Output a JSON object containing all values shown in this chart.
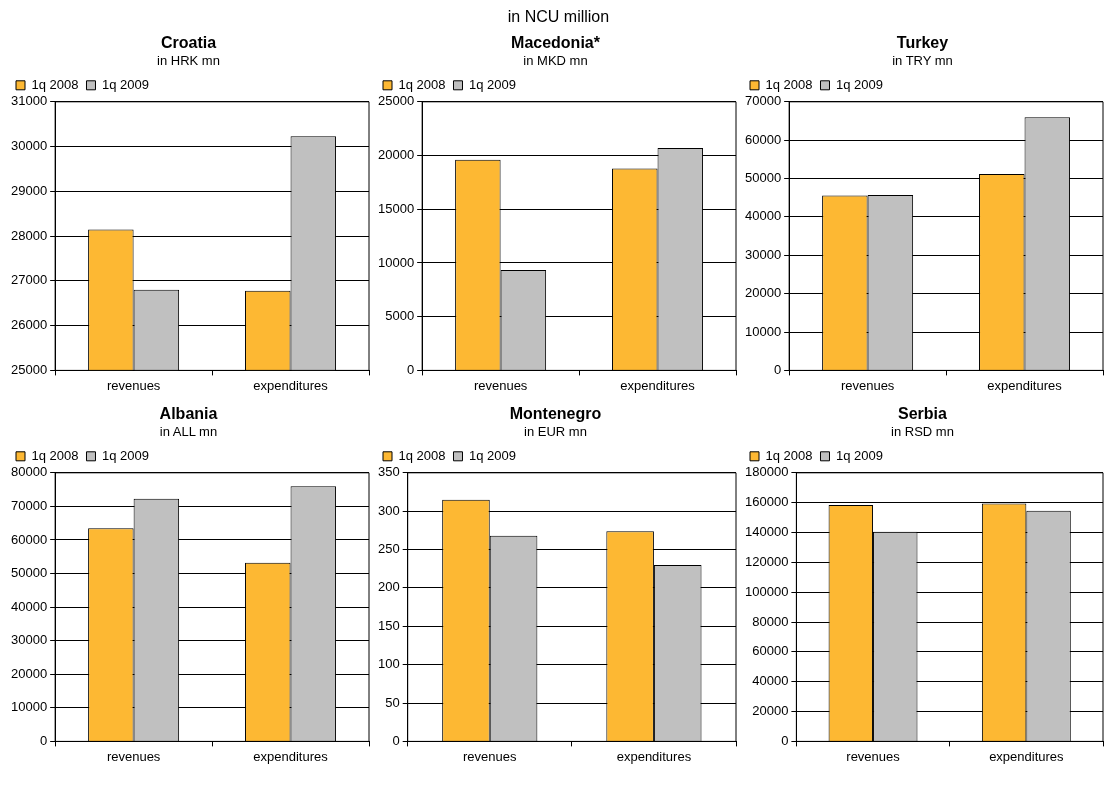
{
  "chart_data": [
    {
      "type": "other",
      "subtitle": "in NCU million"
    },
    {
      "type": "bar",
      "title": "Croatia",
      "subtitle": "in HRK mn",
      "categories": [
        "revenues",
        "expenditures"
      ],
      "series": [
        {
          "name": "1q 2008",
          "color": "#fdb833",
          "values": [
            28150,
            26780
          ]
        },
        {
          "name": "1q 2009",
          "color": "#c0c0c0",
          "values": [
            26800,
            30230
          ]
        }
      ],
      "ylim": [
        25000,
        31000
      ],
      "yticks": [
        25000,
        26000,
        27000,
        28000,
        29000,
        30000,
        31000
      ],
      "grid": "y",
      "legend": "top"
    },
    {
      "type": "bar",
      "title": "Macedonia*",
      "subtitle": "in MKD mn",
      "categories": [
        "revenues",
        "expenditures"
      ],
      "series": [
        {
          "name": "1q 2008",
          "color": "#fdb833",
          "values": [
            19600,
            18800
          ]
        },
        {
          "name": "1q 2009",
          "color": "#c0c0c0",
          "values": [
            9350,
            20700
          ]
        }
      ],
      "ylim": [
        0,
        25000
      ],
      "yticks": [
        0,
        5000,
        10000,
        15000,
        20000,
        25000
      ],
      "grid": "y",
      "legend": "top"
    },
    {
      "type": "bar",
      "title": "Turkey",
      "subtitle": "in TRY mn",
      "categories": [
        "revenues",
        "expenditures"
      ],
      "series": [
        {
          "name": "1q 2008",
          "color": "#fdb833",
          "values": [
            45600,
            51200
          ]
        },
        {
          "name": "1q 2009",
          "color": "#c0c0c0",
          "values": [
            45700,
            66000
          ]
        }
      ],
      "ylim": [
        0,
        70000
      ],
      "yticks": [
        0,
        10000,
        20000,
        30000,
        40000,
        50000,
        60000,
        70000
      ],
      "grid": "y",
      "legend": "top"
    },
    {
      "type": "bar",
      "title": "Albania",
      "subtitle": "in ALL mn",
      "categories": [
        "revenues",
        "expenditures"
      ],
      "series": [
        {
          "name": "1q 2008",
          "color": "#fdb833",
          "values": [
            63500,
            53200
          ]
        },
        {
          "name": "1q 2009",
          "color": "#c0c0c0",
          "values": [
            72300,
            76000
          ]
        }
      ],
      "ylim": [
        0,
        80000
      ],
      "yticks": [
        0,
        10000,
        20000,
        30000,
        40000,
        50000,
        60000,
        70000,
        80000
      ],
      "grid": "y",
      "legend": "top"
    },
    {
      "type": "bar",
      "title": "Montenegro",
      "subtitle": "in EUR mn",
      "categories": [
        "revenues",
        "expenditures"
      ],
      "series": [
        {
          "name": "1q 2008",
          "color": "#fdb833",
          "values": [
            315,
            274
          ]
        },
        {
          "name": "1q 2009",
          "color": "#c0c0c0",
          "values": [
            268,
            230
          ]
        }
      ],
      "ylim": [
        0,
        350
      ],
      "yticks": [
        0,
        50,
        100,
        150,
        200,
        250,
        300,
        350
      ],
      "grid": "y",
      "legend": "top"
    },
    {
      "type": "bar",
      "title": "Serbia",
      "subtitle": "in RSD mn",
      "categories": [
        "revenues",
        "expenditures"
      ],
      "series": [
        {
          "name": "1q 2008",
          "color": "#fdb833",
          "values": [
            158500,
            159500
          ]
        },
        {
          "name": "1q 2009",
          "color": "#c0c0c0",
          "values": [
            140500,
            154500
          ]
        }
      ],
      "ylim": [
        0,
        180000
      ],
      "yticks": [
        0,
        20000,
        40000,
        60000,
        80000,
        100000,
        120000,
        140000,
        160000,
        180000
      ],
      "grid": "y",
      "legend": "top"
    }
  ]
}
